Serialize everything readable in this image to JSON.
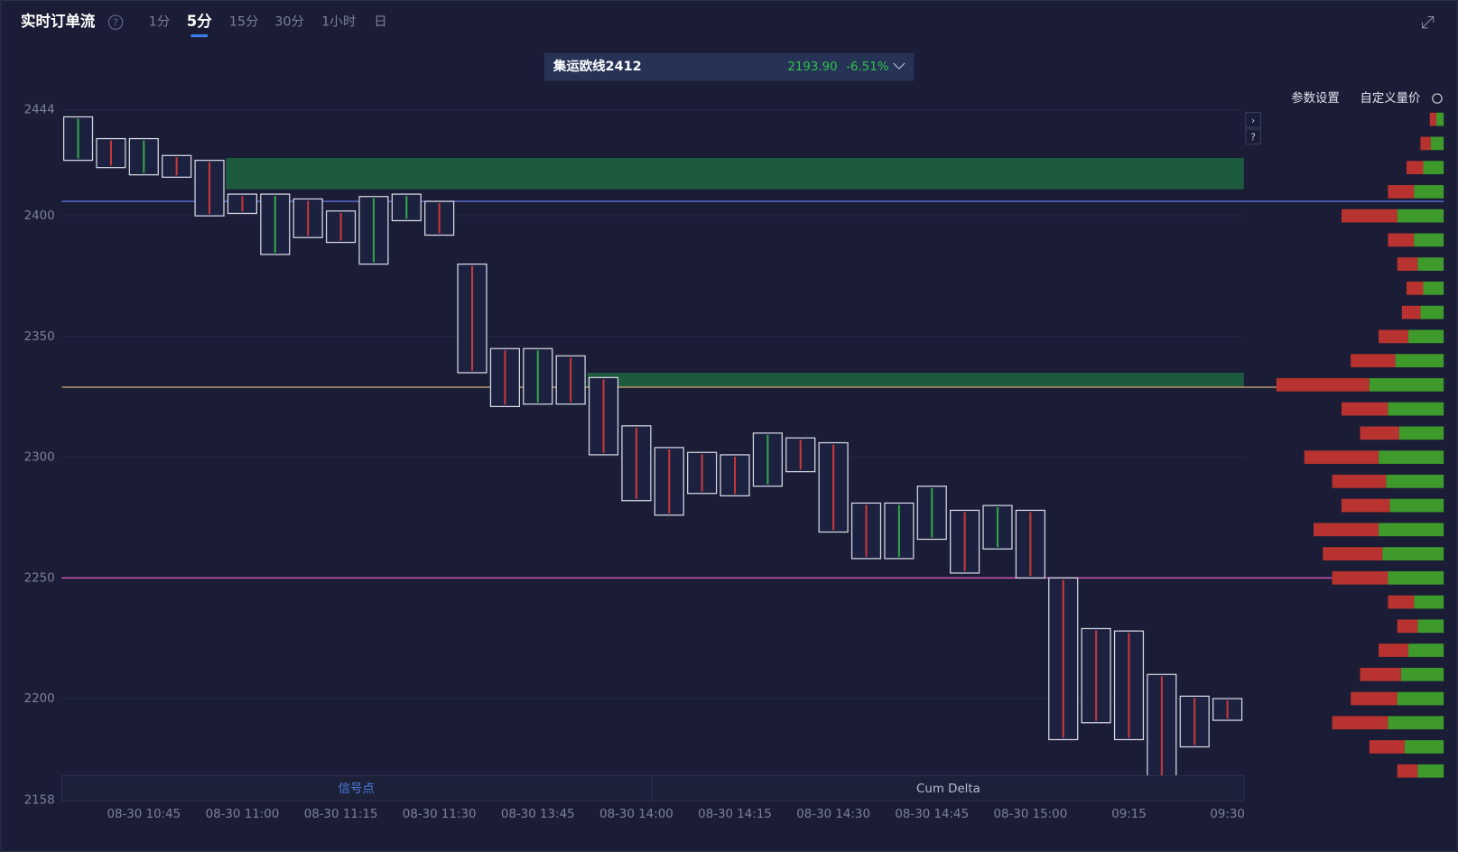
{
  "header": {
    "title": "实时订单流",
    "tabs": [
      "1分",
      "5分",
      "15分",
      "30分",
      "1小时",
      "日"
    ],
    "active_tab": 1
  },
  "instrument": {
    "name": "集运欧线2412",
    "price": "2193.90",
    "change": "-6.51%"
  },
  "toolbar": [
    "参数设置",
    "自定义量价"
  ],
  "chart_data": {
    "type": "footprint",
    "categories": [
      null,
      null,
      "08-30 10:45",
      null,
      null,
      "08-30 11:00",
      null,
      null,
      "08-30 11:15",
      null,
      null,
      "08-30 11:30",
      null,
      null,
      "08-30 13:45",
      null,
      null,
      "08-30 14:00",
      null,
      null,
      "08-30 14:15",
      null,
      null,
      "08-30 14:30",
      null,
      null,
      "08-30 14:45",
      null,
      null,
      "08-30 15:00",
      null,
      null,
      "09:15",
      null,
      null,
      "09:30"
    ],
    "high": [
      2441,
      2432,
      2432,
      2425,
      2423,
      2409,
      2409,
      2407,
      2402,
      2408,
      2409,
      2406,
      2380,
      2345,
      2345,
      2342,
      2333,
      2313,
      2304,
      2302,
      2301,
      2310,
      2308,
      2306,
      2281,
      2281,
      2288,
      2278,
      2280,
      2278,
      2250,
      2229,
      2228,
      2210,
      2201,
      2200
    ],
    "low": [
      2423,
      2420,
      2417,
      2416,
      2400,
      2401,
      2384,
      2391,
      2389,
      2380,
      2398,
      2392,
      2335,
      2321,
      2322,
      2322,
      2301,
      2282,
      2276,
      2285,
      2284,
      2288,
      2294,
      2269,
      2258,
      2258,
      2266,
      2252,
      2262,
      2250,
      2183,
      2190,
      2183,
      2166,
      2180,
      2191
    ],
    "ylim": [
      2158,
      2444
    ],
    "yticks": [
      2158,
      2200,
      2250,
      2300,
      2350,
      2400,
      2444
    ],
    "grid": true,
    "zones": [
      {
        "from": 2411,
        "to": 2424,
        "start": 4,
        "color": "#1d5a3e"
      },
      {
        "from": 2329,
        "to": 2335,
        "start": 15,
        "color": "#1d5a3e"
      }
    ],
    "levels": [
      {
        "value": 2406,
        "color": "#5a68d0"
      },
      {
        "value": 2329,
        "color": "#b3986a"
      },
      {
        "value": 2250,
        "color": "#c44fae"
      }
    ],
    "volume_profile": {
      "prices": [
        2440,
        2430,
        2420,
        2410,
        2400,
        2390,
        2380,
        2370,
        2360,
        2350,
        2340,
        2330,
        2320,
        2310,
        2300,
        2290,
        2280,
        2270,
        2260,
        2250,
        2240,
        2230,
        2220,
        2210,
        2200,
        2190,
        2180,
        2170
      ],
      "buy": [
        8,
        14,
        22,
        32,
        50,
        32,
        28,
        22,
        25,
        38,
        52,
        80,
        60,
        48,
        70,
        62,
        58,
        70,
        66,
        60,
        32,
        28,
        38,
        46,
        50,
        60,
        42,
        28
      ],
      "sell": [
        7,
        11,
        18,
        28,
        60,
        28,
        22,
        18,
        20,
        32,
        48,
        100,
        50,
        42,
        80,
        58,
        52,
        70,
        64,
        60,
        28,
        22,
        32,
        44,
        50,
        60,
        38,
        22
      ]
    },
    "panel_labels": [
      "信号点",
      "Cum Delta"
    ]
  }
}
